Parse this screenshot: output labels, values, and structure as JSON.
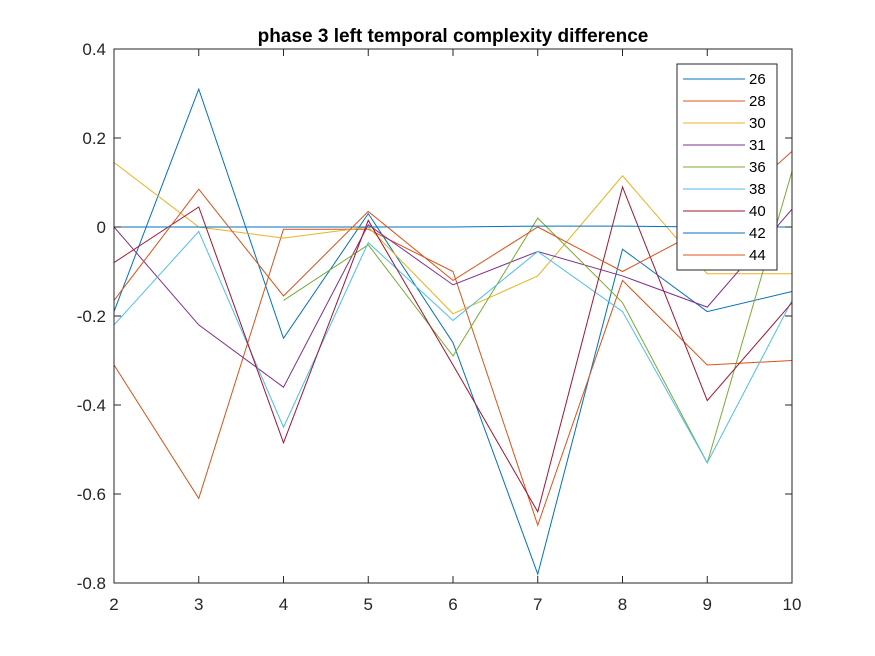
{
  "chart_data": {
    "type": "line",
    "title": "phase 3 left temporal complexity difference",
    "xlabel": "",
    "ylabel": "",
    "xlim": [
      2,
      10
    ],
    "ylim": [
      -0.8,
      0.4
    ],
    "grid": false,
    "legend_position": "top-right",
    "x": [
      2,
      3,
      4,
      5,
      6,
      7,
      8,
      9,
      10
    ],
    "x_tick_labels": [
      "2",
      "3",
      "4",
      "5",
      "6",
      "7",
      "8",
      "9",
      "10"
    ],
    "y_ticks": [
      -0.8,
      -0.6,
      -0.4,
      -0.2,
      0,
      0.2,
      0.4
    ],
    "y_tick_labels": [
      "-0.8",
      "-0.6",
      "-0.4",
      "-0.2",
      "0",
      "0.2",
      "0.4"
    ],
    "series": [
      {
        "name": "26",
        "color": "#0072BD",
        "values": [
          -0.19,
          0.31,
          -0.25,
          0.03,
          -0.26,
          -0.78,
          -0.05,
          -0.19,
          -0.145
        ]
      },
      {
        "name": "28",
        "color": "#D95319",
        "values": [
          -0.31,
          -0.61,
          -0.005,
          -0.005,
          -0.1,
          -0.67,
          -0.12,
          -0.31,
          -0.3
        ]
      },
      {
        "name": "30",
        "color": "#EDB120",
        "values": [
          0.145,
          0.0,
          -0.025,
          0.0,
          -0.195,
          -0.11,
          0.115,
          -0.105,
          -0.105
        ]
      },
      {
        "name": "31",
        "color": "#7E2F8E",
        "values": [
          0.0,
          -0.22,
          -0.36,
          0.005,
          -0.13,
          -0.055,
          -0.11,
          -0.18,
          0.04
        ]
      },
      {
        "name": "36",
        "color": "#77AC30",
        "values": [
          null,
          null,
          -0.165,
          -0.04,
          -0.29,
          0.02,
          -0.17,
          -0.53,
          0.125
        ]
      },
      {
        "name": "38",
        "color": "#4DBEEE",
        "values": [
          -0.22,
          -0.01,
          -0.45,
          -0.035,
          -0.21,
          -0.055,
          -0.19,
          -0.53,
          -0.165
        ]
      },
      {
        "name": "40",
        "color": "#A2142F",
        "values": [
          -0.08,
          0.045,
          -0.485,
          0.015,
          -0.31,
          -0.64,
          0.09,
          -0.39,
          -0.17
        ]
      },
      {
        "name": "42",
        "color": "#0072BD",
        "values": [
          0.0,
          0.0,
          0.0,
          0.0,
          0.0,
          0.002,
          0.002,
          0.0,
          0.0
        ]
      },
      {
        "name": "44",
        "color": "#D95319",
        "values": [
          -0.165,
          0.085,
          -0.155,
          0.035,
          -0.12,
          0.0,
          -0.1,
          0.0,
          0.17
        ]
      }
    ]
  }
}
